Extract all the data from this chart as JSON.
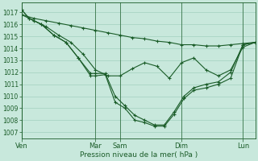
{
  "xlabel": "Pression niveau de la mer( hPa )",
  "bg_color": "#c8e8dc",
  "grid_color": "#a8d4c4",
  "line_color": "#1a5c28",
  "ylim": [
    1006.5,
    1017.8
  ],
  "yticks": [
    1007,
    1008,
    1009,
    1010,
    1011,
    1012,
    1013,
    1014,
    1015,
    1016,
    1017
  ],
  "xtick_labels": [
    "Ven",
    "Mar",
    "Sam",
    "Dim",
    "Lun"
  ],
  "xtick_positions": [
    0,
    30,
    40,
    65,
    90
  ],
  "vline_positions": [
    0,
    30,
    40,
    65,
    90
  ],
  "xlim": [
    0,
    95
  ],
  "series": [
    {
      "x": [
        0,
        5,
        10,
        15,
        20,
        25,
        30,
        35,
        40,
        45,
        50,
        55,
        60,
        65,
        70,
        75,
        80,
        85,
        90,
        95
      ],
      "y": [
        1016.8,
        1016.5,
        1016.3,
        1016.1,
        1015.9,
        1015.7,
        1015.5,
        1015.3,
        1015.1,
        1014.9,
        1014.8,
        1014.6,
        1014.5,
        1014.3,
        1014.3,
        1014.2,
        1014.2,
        1014.3,
        1014.4,
        1014.5
      ]
    },
    {
      "x": [
        0,
        5,
        10,
        15,
        20,
        25,
        30,
        35,
        40,
        45,
        50,
        55,
        60,
        65,
        70,
        75,
        80,
        85,
        90,
        95
      ],
      "y": [
        1016.8,
        1016.3,
        1015.8,
        1015.1,
        1014.5,
        1013.5,
        1012.2,
        1011.7,
        1011.7,
        1012.3,
        1012.8,
        1012.5,
        1011.5,
        1012.8,
        1013.2,
        1012.2,
        1011.7,
        1012.2,
        1014.1,
        1014.5
      ]
    },
    {
      "x": [
        0,
        3,
        8,
        13,
        18,
        23,
        28,
        30,
        34,
        38,
        42,
        46,
        50,
        54,
        58,
        62,
        66,
        70,
        75,
        80,
        85,
        90,
        95
      ],
      "y": [
        1017.2,
        1016.5,
        1016.0,
        1015.1,
        1014.5,
        1013.2,
        1011.7,
        1011.7,
        1011.8,
        1009.5,
        1009.0,
        1008.0,
        1007.8,
        1007.5,
        1007.5,
        1008.5,
        1009.8,
        1010.5,
        1010.7,
        1011.0,
        1011.5,
        1014.3,
        1014.5
      ]
    },
    {
      "x": [
        0,
        3,
        8,
        13,
        18,
        23,
        28,
        30,
        34,
        38,
        42,
        46,
        50,
        54,
        58,
        62,
        66,
        70,
        75,
        80,
        85,
        90,
        95
      ],
      "y": [
        1017.2,
        1016.5,
        1016.0,
        1015.1,
        1014.5,
        1013.2,
        1011.9,
        1011.9,
        1011.9,
        1010.0,
        1009.2,
        1008.4,
        1008.0,
        1007.6,
        1007.6,
        1008.7,
        1010.0,
        1010.7,
        1011.0,
        1011.2,
        1012.0,
        1014.3,
        1014.5
      ]
    }
  ]
}
